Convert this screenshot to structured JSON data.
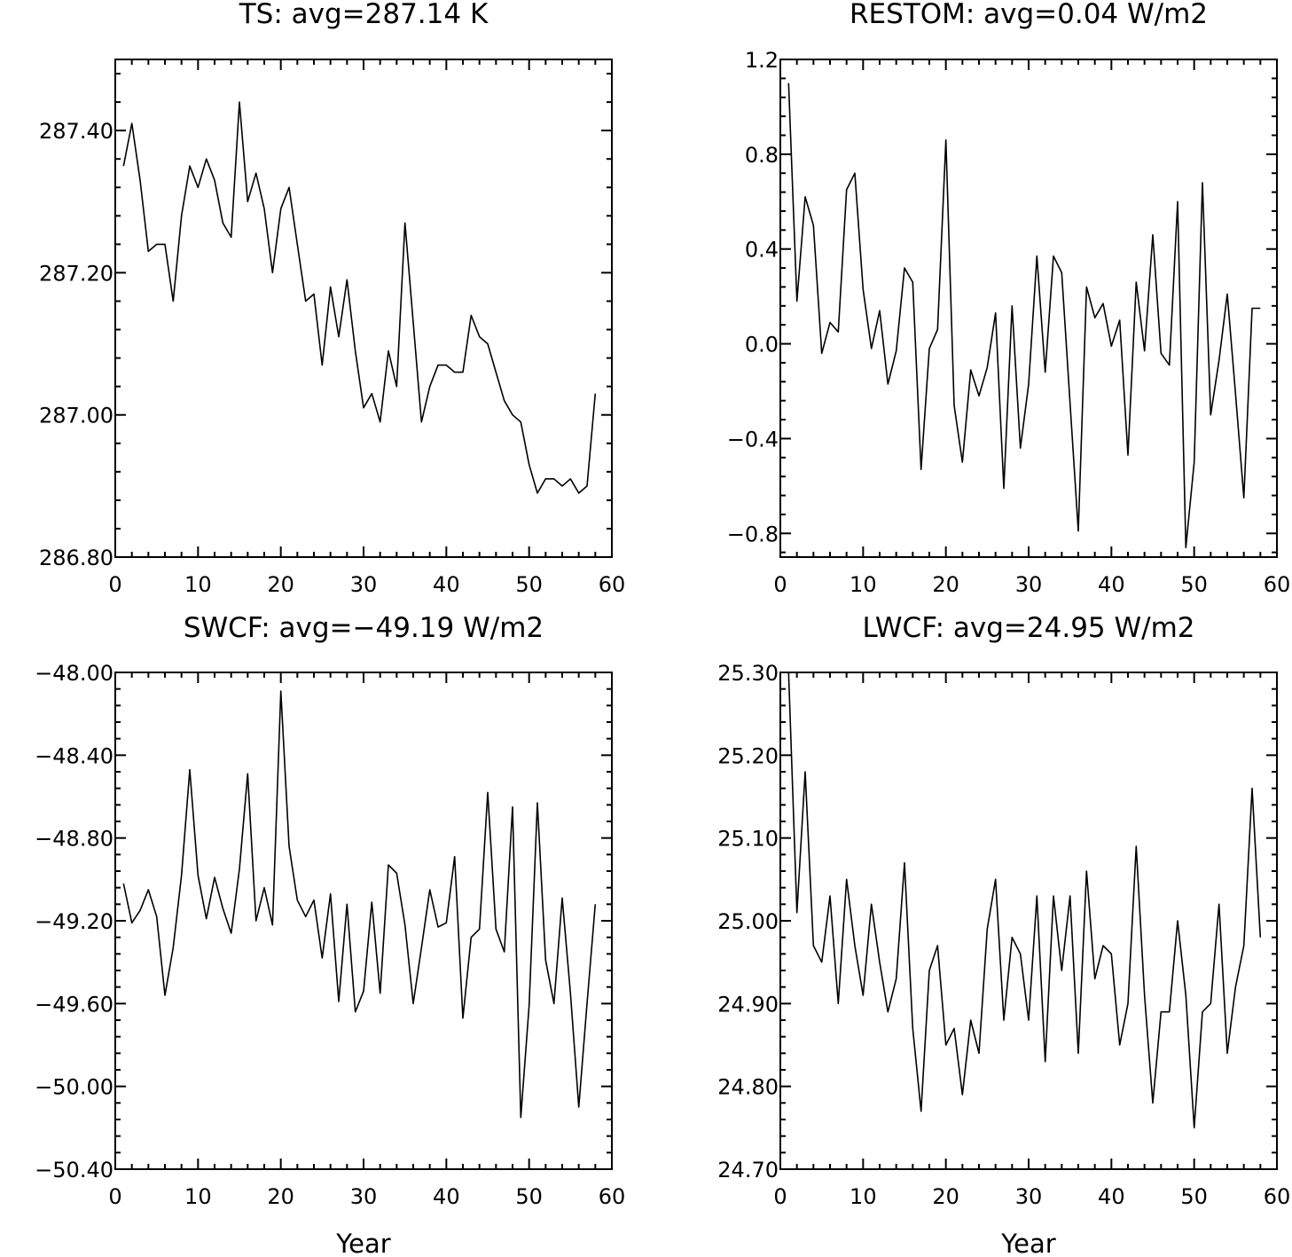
{
  "chart_data": [
    {
      "type": "line",
      "title": "TS: avg=287.14 K",
      "xlabel": "",
      "ylabel": "",
      "xlim": [
        0,
        60
      ],
      "ylim": [
        286.8,
        287.5
      ],
      "xticks": [
        0,
        10,
        20,
        30,
        40,
        50,
        60
      ],
      "yticks": [
        286.8,
        287.0,
        287.2,
        287.4
      ],
      "yticks_labels": [
        "286.80",
        "287.00",
        "287.20",
        "287.40"
      ],
      "grid": false,
      "series": [
        {
          "x": [
            1,
            2,
            3,
            4,
            5,
            6,
            7,
            8,
            9,
            10,
            11,
            12,
            13,
            14,
            15,
            16,
            17,
            18,
            19,
            20,
            21,
            22,
            23,
            24,
            25,
            26,
            27,
            28,
            29,
            30,
            31,
            32,
            33,
            34,
            35,
            36,
            37,
            38,
            39,
            40,
            41,
            42,
            43,
            44,
            45,
            46,
            47,
            48,
            49,
            50,
            51,
            52,
            53,
            54,
            55,
            56,
            57,
            58
          ],
          "y": [
            287.35,
            287.41,
            287.33,
            287.23,
            287.24,
            287.24,
            287.16,
            287.28,
            287.35,
            287.32,
            287.36,
            287.33,
            287.27,
            287.25,
            287.44,
            287.3,
            287.34,
            287.29,
            287.2,
            287.29,
            287.32,
            287.24,
            287.16,
            287.17,
            287.07,
            287.18,
            287.11,
            287.19,
            287.09,
            287.01,
            287.03,
            286.99,
            287.09,
            287.04,
            287.27,
            287.13,
            286.99,
            287.04,
            287.07,
            287.07,
            287.06,
            287.06,
            287.14,
            287.11,
            287.1,
            287.06,
            287.02,
            287.0,
            286.99,
            286.93,
            286.89,
            286.91,
            286.91,
            286.9,
            286.91,
            286.89,
            286.9,
            287.03
          ]
        }
      ]
    },
    {
      "type": "line",
      "title": "RESTOM: avg=0.04 W/m2",
      "xlabel": "",
      "ylabel": "",
      "xlim": [
        0,
        60
      ],
      "ylim": [
        -0.9,
        1.2
      ],
      "xticks": [
        0,
        10,
        20,
        30,
        40,
        50,
        60
      ],
      "yticks": [
        -0.8,
        -0.4,
        0.0,
        0.4,
        0.8,
        1.2
      ],
      "yticks_labels": [
        "−0.8",
        "−0.4",
        "0.0",
        "0.4",
        "0.8",
        "1.2"
      ],
      "grid": false,
      "series": [
        {
          "x": [
            1,
            2,
            3,
            4,
            5,
            6,
            7,
            8,
            9,
            10,
            11,
            12,
            13,
            14,
            15,
            16,
            17,
            18,
            19,
            20,
            21,
            22,
            23,
            24,
            25,
            26,
            27,
            28,
            29,
            30,
            31,
            32,
            33,
            34,
            35,
            36,
            37,
            38,
            39,
            40,
            41,
            42,
            43,
            44,
            45,
            46,
            47,
            48,
            49,
            50,
            51,
            52,
            53,
            54,
            55,
            56,
            57,
            58
          ],
          "y": [
            1.1,
            0.18,
            0.62,
            0.5,
            -0.04,
            0.09,
            0.05,
            0.65,
            0.72,
            0.23,
            -0.02,
            0.14,
            -0.17,
            -0.03,
            0.32,
            0.26,
            -0.53,
            -0.02,
            0.06,
            0.86,
            -0.26,
            -0.5,
            -0.11,
            -0.22,
            -0.1,
            0.13,
            -0.61,
            0.16,
            -0.44,
            -0.17,
            0.37,
            -0.12,
            0.37,
            0.3,
            -0.25,
            -0.79,
            0.24,
            0.11,
            0.17,
            -0.01,
            0.1,
            -0.47,
            0.26,
            -0.03,
            0.46,
            -0.04,
            -0.09,
            0.6,
            -0.86,
            -0.5,
            0.68,
            -0.3,
            -0.07,
            0.21,
            -0.21,
            -0.65,
            0.15,
            0.15
          ]
        }
      ]
    },
    {
      "type": "line",
      "title": "SWCF: avg=−49.19 W/m2",
      "xlabel": "Year",
      "ylabel": "",
      "xlim": [
        0,
        60
      ],
      "ylim": [
        -50.4,
        -48.0
      ],
      "xticks": [
        0,
        10,
        20,
        30,
        40,
        50,
        60
      ],
      "yticks": [
        -50.4,
        -50.0,
        -49.6,
        -49.2,
        -48.8,
        -48.4,
        -48.0
      ],
      "yticks_labels": [
        "−50.40",
        "−50.00",
        "−49.60",
        "−49.20",
        "−48.80",
        "−48.40",
        "−48.00"
      ],
      "grid": false,
      "series": [
        {
          "x": [
            1,
            2,
            3,
            4,
            5,
            6,
            7,
            8,
            9,
            10,
            11,
            12,
            13,
            14,
            15,
            16,
            17,
            18,
            19,
            20,
            21,
            22,
            23,
            24,
            25,
            26,
            27,
            28,
            29,
            30,
            31,
            32,
            33,
            34,
            35,
            36,
            37,
            38,
            39,
            40,
            41,
            42,
            43,
            44,
            45,
            46,
            47,
            48,
            49,
            50,
            51,
            52,
            53,
            54,
            55,
            56,
            57,
            58
          ],
          "y": [
            -49.02,
            -49.21,
            -49.15,
            -49.05,
            -49.18,
            -49.56,
            -49.33,
            -48.98,
            -48.47,
            -48.98,
            -49.19,
            -48.99,
            -49.14,
            -49.26,
            -48.95,
            -48.49,
            -49.2,
            -49.04,
            -49.22,
            -48.09,
            -48.84,
            -49.1,
            -49.18,
            -49.1,
            -49.38,
            -49.07,
            -49.59,
            -49.12,
            -49.64,
            -49.54,
            -49.11,
            -49.55,
            -48.93,
            -48.97,
            -49.22,
            -49.6,
            -49.33,
            -49.05,
            -49.23,
            -49.21,
            -48.89,
            -49.67,
            -49.28,
            -49.24,
            -48.58,
            -49.24,
            -49.35,
            -48.65,
            -50.15,
            -49.61,
            -48.63,
            -49.39,
            -49.6,
            -49.09,
            -49.55,
            -50.1,
            -49.6,
            -49.12
          ]
        }
      ]
    },
    {
      "type": "line",
      "title": "LWCF: avg=24.95 W/m2",
      "xlabel": "Year",
      "ylabel": "",
      "xlim": [
        0,
        60
      ],
      "ylim": [
        24.7,
        25.3
      ],
      "xticks": [
        0,
        10,
        20,
        30,
        40,
        50,
        60
      ],
      "yticks": [
        24.7,
        24.8,
        24.9,
        25.0,
        25.1,
        25.2,
        25.3
      ],
      "yticks_labels": [
        "24.70",
        "24.80",
        "24.90",
        "25.00",
        "25.10",
        "25.20",
        "25.30"
      ],
      "grid": false,
      "series": [
        {
          "x": [
            1,
            2,
            3,
            4,
            5,
            6,
            7,
            8,
            9,
            10,
            11,
            12,
            13,
            14,
            15,
            16,
            17,
            18,
            19,
            20,
            21,
            22,
            23,
            24,
            25,
            26,
            27,
            28,
            29,
            30,
            31,
            32,
            33,
            34,
            35,
            36,
            37,
            38,
            39,
            40,
            41,
            42,
            43,
            44,
            45,
            46,
            47,
            48,
            49,
            50,
            51,
            52,
            53,
            54,
            55,
            56,
            57,
            58
          ],
          "y": [
            25.3,
            25.01,
            25.18,
            24.97,
            24.95,
            25.03,
            24.9,
            25.05,
            24.97,
            24.91,
            25.02,
            24.95,
            24.89,
            24.93,
            25.07,
            24.87,
            24.77,
            24.94,
            24.97,
            24.85,
            24.87,
            24.79,
            24.88,
            24.84,
            24.99,
            25.05,
            24.88,
            24.98,
            24.96,
            24.88,
            25.03,
            24.83,
            25.03,
            24.94,
            25.03,
            24.84,
            25.06,
            24.93,
            24.97,
            24.96,
            24.85,
            24.9,
            25.09,
            24.91,
            24.78,
            24.89,
            24.89,
            25.0,
            24.91,
            24.75,
            24.89,
            24.9,
            25.02,
            24.84,
            24.92,
            24.97,
            25.16,
            24.98
          ]
        }
      ]
    }
  ]
}
